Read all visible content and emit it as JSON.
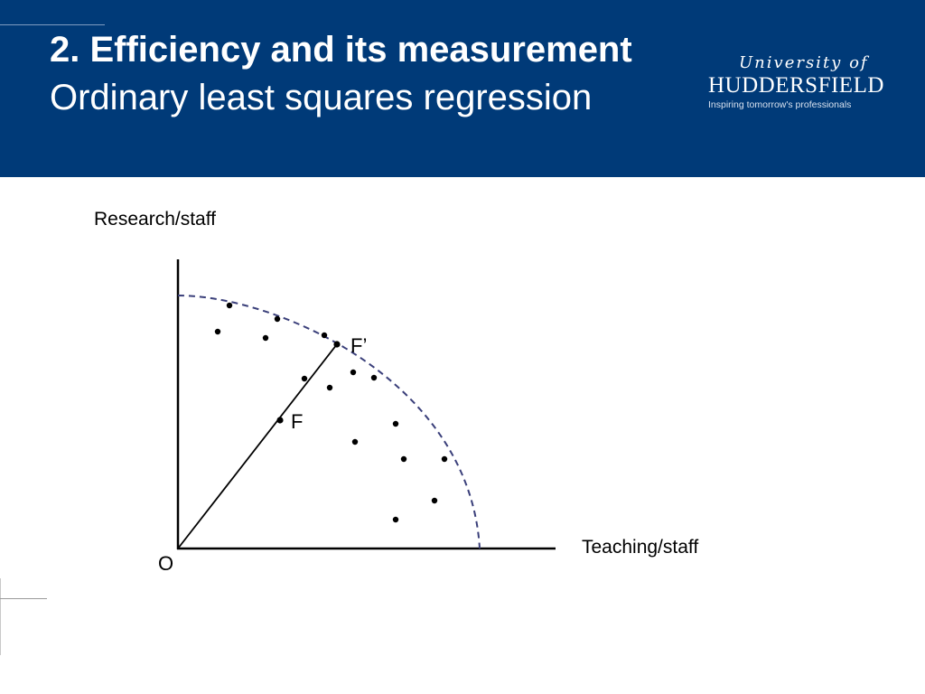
{
  "header": {
    "title": "2. Efficiency and its measurement",
    "subtitle": "Ordinary least squares regression",
    "background_color": "#003a78"
  },
  "logo": {
    "line1": "University of",
    "line2": "HUDDERSFIELD",
    "line3": "Inspiring tomorrow's professionals"
  },
  "diagram": {
    "y_axis_label": "Research/staff",
    "x_axis_label": "Teaching/staff",
    "origin_label": "O",
    "point_f_label": "F",
    "point_f_prime_label": "F’",
    "frontier_style": "dashed",
    "frontier_color": "#3a3f7a"
  }
}
